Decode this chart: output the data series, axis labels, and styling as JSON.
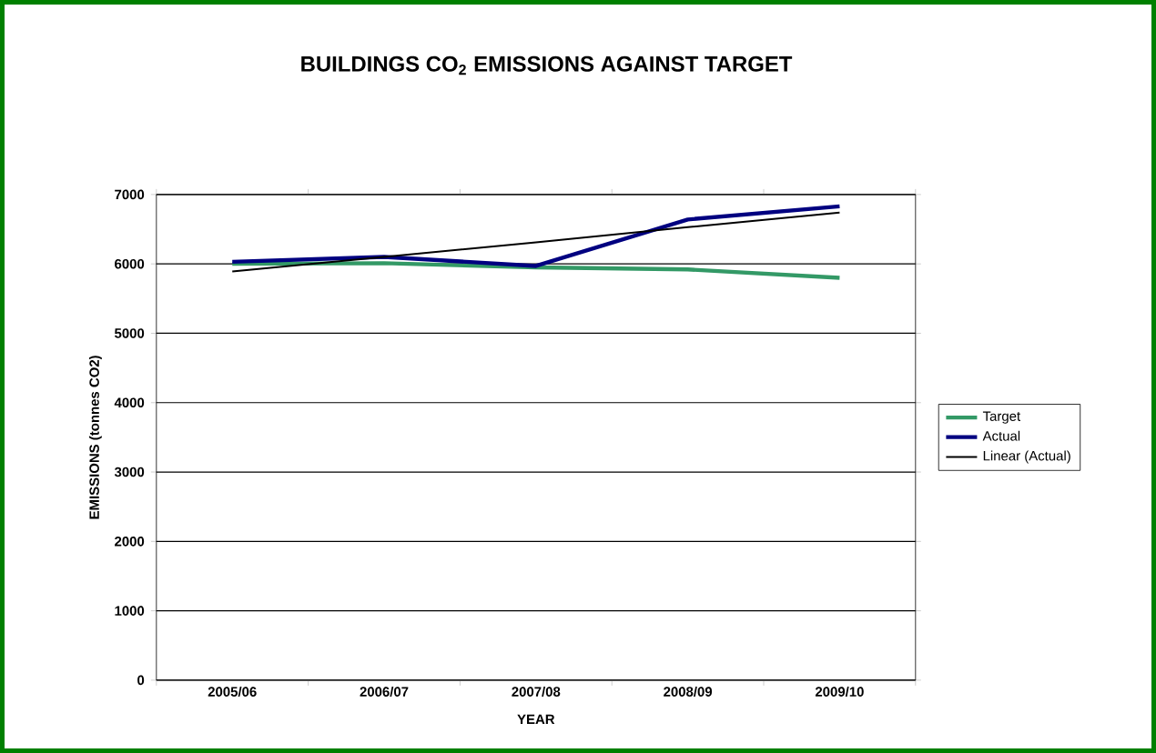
{
  "chart_data": {
    "type": "line",
    "title": "BUILDINGS CO$_{2}$ EMISSIONS AGAINST TARGET",
    "xlabel": "YEAR",
    "ylabel": "EMISSIONS (tonnes CO2)",
    "categories": [
      "2005/06",
      "2006/07",
      "2007/08",
      "2008/09",
      "2009/10"
    ],
    "series": [
      {
        "name": "Target",
        "color": "#339966",
        "values": [
          6000,
          6010,
          5950,
          5920,
          5800
        ]
      },
      {
        "name": "Actual",
        "color": "#000080",
        "values": [
          6030,
          6100,
          5970,
          6640,
          6830
        ]
      },
      {
        "name": "Linear (Actual)",
        "color": "#000000",
        "values": [
          5890,
          6100,
          6310,
          6530,
          6740
        ]
      }
    ],
    "ylim": [
      0,
      7000
    ],
    "yticks": [
      0,
      1000,
      2000,
      3000,
      4000,
      5000,
      6000,
      7000
    ],
    "grid": "y",
    "legend": "right",
    "marker": "none",
    "line_style": "solid"
  }
}
